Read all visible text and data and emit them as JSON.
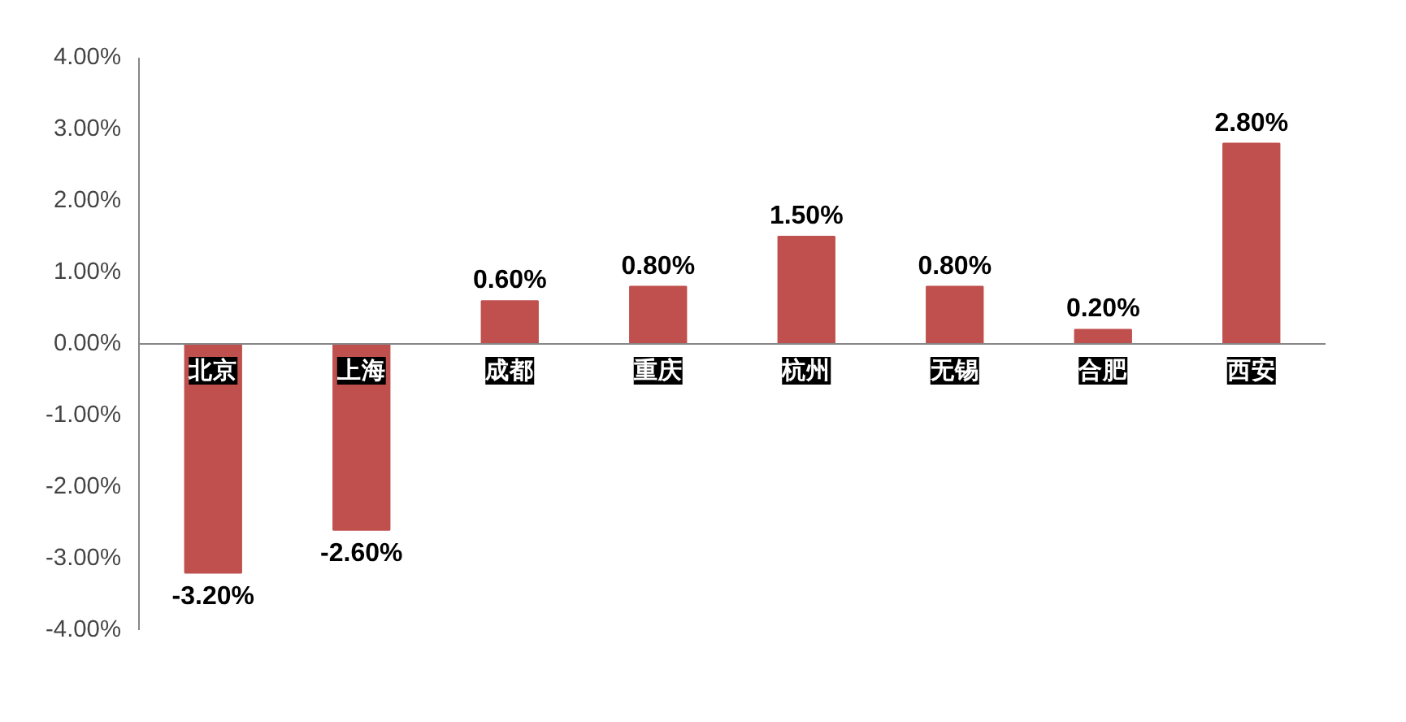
{
  "chart_data": {
    "type": "bar",
    "categories": [
      "北京",
      "上海",
      "成都",
      "重庆",
      "杭州",
      "无锡",
      "合肥",
      "西安"
    ],
    "values": [
      -3.2,
      -2.6,
      0.6,
      0.8,
      1.5,
      0.8,
      0.2,
      2.8
    ],
    "value_labels": [
      "-3.20%",
      "-2.60%",
      "0.60%",
      "0.80%",
      "1.50%",
      "0.80%",
      "0.20%",
      "2.80%"
    ],
    "color": "#c0504d",
    "ylim": [
      -4,
      4
    ],
    "yticks": [
      {
        "value": 4,
        "label": "4.00%"
      },
      {
        "value": 3,
        "label": "3.00%"
      },
      {
        "value": 2,
        "label": "2.00%"
      },
      {
        "value": 1,
        "label": "1.00%"
      },
      {
        "value": 0,
        "label": "0.00%"
      },
      {
        "value": -1,
        "label": "-1.00%"
      },
      {
        "value": -2,
        "label": "-2.00%"
      },
      {
        "value": -3,
        "label": "-3.00%"
      },
      {
        "value": -4,
        "label": "-4.00%"
      }
    ],
    "grid": false
  }
}
